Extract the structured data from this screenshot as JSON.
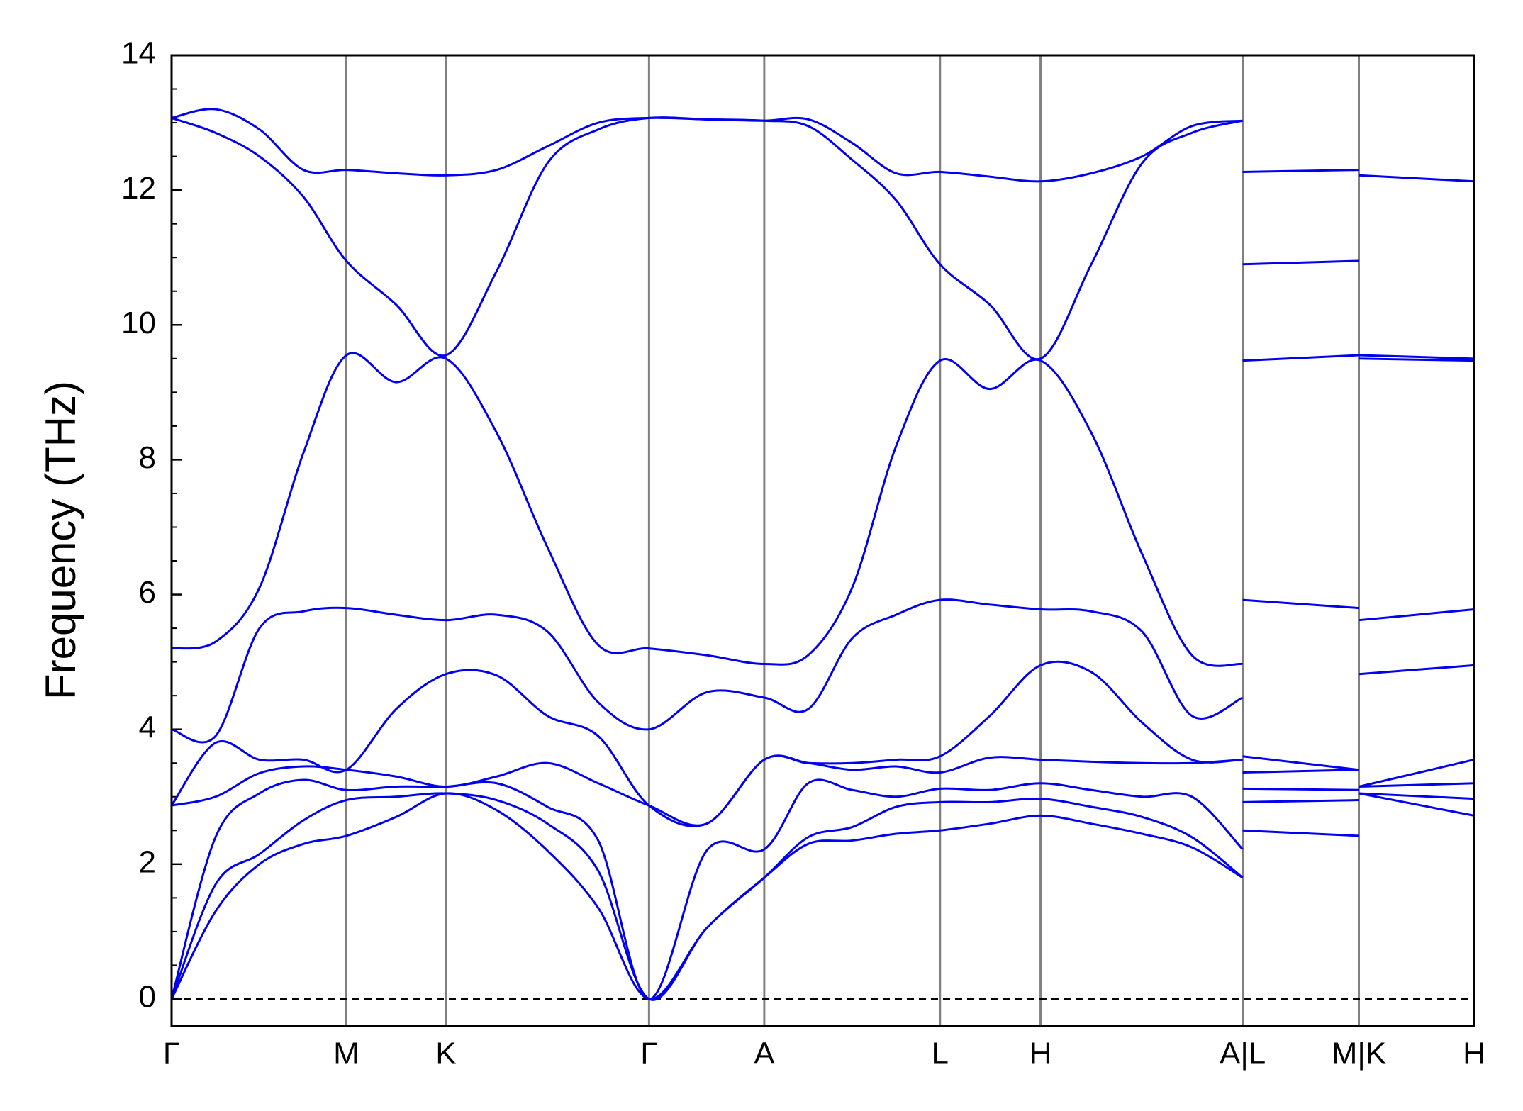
{
  "chart_data": {
    "type": "line",
    "ylabel": "Frequency (THz)",
    "xlim": [
      0,
      1334
    ],
    "ylim": [
      -0.4,
      14
    ],
    "xticks": [
      {
        "value": 0,
        "label": "Γ"
      },
      {
        "value": 179,
        "label": "M"
      },
      {
        "value": 281,
        "label": "K"
      },
      {
        "value": 489,
        "label": "Γ"
      },
      {
        "value": 607,
        "label": "A"
      },
      {
        "value": 787,
        "label": "L"
      },
      {
        "value": 890,
        "label": "H"
      },
      {
        "value": 1097,
        "label": "A|L"
      },
      {
        "value": 1216,
        "label": "M|K"
      },
      {
        "value": 1334,
        "label": "H"
      }
    ],
    "yticks": [
      0,
      2,
      4,
      6,
      8,
      10,
      12,
      14
    ],
    "x": [
      0,
      45,
      90,
      135,
      179,
      230,
      281,
      333,
      385,
      437,
      489,
      548,
      607,
      652,
      697,
      742,
      787,
      838,
      890,
      942,
      994,
      1045,
      1097,
      1097,
      1097,
      1216,
      1216,
      1216,
      1334
    ],
    "series": [
      {
        "color": "#0000ee",
        "values": [
          0,
          1.3,
          2.0,
          2.3,
          2.42,
          2.7,
          3.05,
          2.8,
          2.2,
          1.35,
          0,
          1.05,
          1.8,
          2.3,
          2.35,
          2.45,
          2.5,
          2.6,
          2.72,
          2.6,
          2.45,
          2.25,
          1.8,
          null,
          2.5,
          2.42,
          null,
          3.05,
          2.72
        ]
      },
      {
        "color": "#0000ee",
        "values": [
          0,
          1.7,
          2.15,
          2.65,
          2.95,
          3.0,
          3.05,
          2.95,
          2.6,
          1.9,
          0,
          1.05,
          1.8,
          2.4,
          2.55,
          2.85,
          2.92,
          2.92,
          2.97,
          2.85,
          2.7,
          2.4,
          1.8,
          null,
          2.92,
          2.95,
          null,
          3.05,
          2.97
        ]
      },
      {
        "color": "#0000ee",
        "values": [
          0,
          2.4,
          3.05,
          3.25,
          3.1,
          3.15,
          3.15,
          3.2,
          2.85,
          2.35,
          0,
          2.2,
          2.22,
          3.2,
          3.1,
          3.0,
          3.12,
          3.1,
          3.2,
          3.1,
          3.0,
          3.0,
          2.22,
          null,
          3.12,
          3.1,
          null,
          3.15,
          3.2
        ]
      },
      {
        "color": "#0000ee",
        "values": [
          2.87,
          3.0,
          3.35,
          3.45,
          3.4,
          3.3,
          3.15,
          3.3,
          3.5,
          3.2,
          2.87,
          2.6,
          3.55,
          3.5,
          3.4,
          3.45,
          3.36,
          3.58,
          3.55,
          3.52,
          3.5,
          3.5,
          3.55,
          null,
          3.36,
          3.4,
          null,
          3.15,
          3.55
        ]
      },
      {
        "color": "#0000ee",
        "values": [
          2.87,
          3.8,
          3.55,
          3.55,
          3.4,
          4.3,
          4.82,
          4.8,
          4.2,
          3.9,
          2.87,
          2.6,
          3.55,
          3.5,
          3.5,
          3.55,
          3.6,
          4.2,
          4.95,
          4.85,
          4.1,
          3.55,
          3.55,
          null,
          3.6,
          3.4,
          null,
          4.82,
          4.95
        ]
      },
      {
        "color": "#0000ee",
        "values": [
          4.0,
          3.9,
          5.5,
          5.75,
          5.8,
          5.7,
          5.62,
          5.7,
          5.45,
          4.4,
          4.0,
          4.55,
          4.47,
          4.3,
          5.35,
          5.7,
          5.92,
          5.85,
          5.78,
          5.75,
          5.45,
          4.2,
          4.47,
          null,
          5.92,
          5.8,
          null,
          5.62,
          5.78
        ]
      },
      {
        "color": "#0000ee",
        "values": [
          5.2,
          5.3,
          6.1,
          8.1,
          9.55,
          9.15,
          9.5,
          8.4,
          6.7,
          5.25,
          5.2,
          5.1,
          4.97,
          5.1,
          6.1,
          8.2,
          9.47,
          9.05,
          9.47,
          8.4,
          6.6,
          5.1,
          4.97,
          null,
          9.47,
          9.55,
          null,
          9.5,
          9.47
        ]
      },
      {
        "color": "#0000ee",
        "values": [
          13.07,
          12.85,
          12.5,
          11.9,
          10.95,
          10.3,
          9.55,
          10.8,
          12.4,
          12.9,
          13.07,
          13.05,
          13.03,
          12.95,
          12.45,
          11.85,
          10.9,
          10.3,
          9.5,
          10.9,
          12.4,
          12.85,
          13.03,
          null,
          10.9,
          10.95,
          null,
          9.55,
          9.5
        ]
      },
      {
        "color": "#0000ee",
        "values": [
          13.07,
          13.2,
          12.9,
          12.3,
          12.3,
          12.25,
          12.22,
          12.3,
          12.65,
          13.0,
          13.07,
          13.05,
          13.03,
          13.05,
          12.7,
          12.25,
          12.27,
          12.2,
          12.13,
          12.25,
          12.5,
          12.95,
          13.03,
          null,
          12.27,
          12.3,
          null,
          12.22,
          12.13
        ]
      }
    ]
  }
}
